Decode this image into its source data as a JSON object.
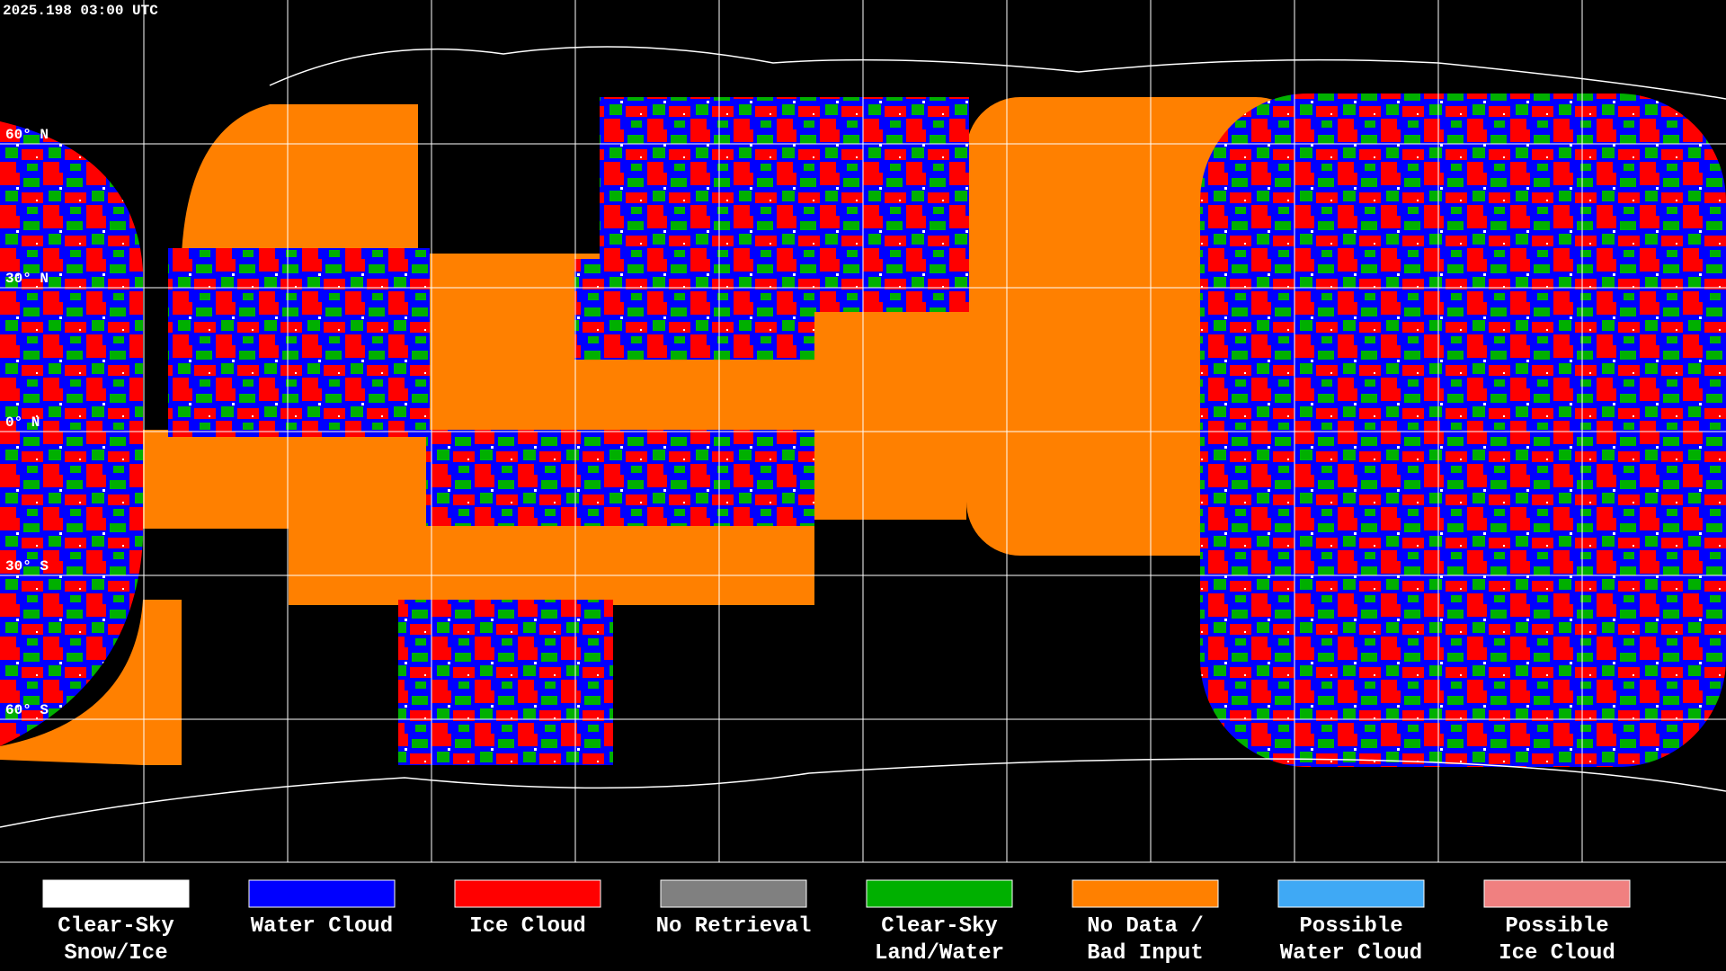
{
  "header": {
    "timestamp": "2025.198 03:00 UTC"
  },
  "map": {
    "latitude_labels": [
      "60° N",
      "30° N",
      "0° N",
      "30° S",
      "60° S"
    ]
  },
  "legend": {
    "items": [
      {
        "lines": [
          "Clear-Sky",
          "Snow/Ice"
        ],
        "color": "#ffffff"
      },
      {
        "lines": [
          "Water Cloud"
        ],
        "color": "#0000ff"
      },
      {
        "lines": [
          "Ice Cloud"
        ],
        "color": "#ff0000"
      },
      {
        "lines": [
          "No Retrieval"
        ],
        "color": "#808080"
      },
      {
        "lines": [
          "Clear-Sky",
          "Land/Water"
        ],
        "color": "#00b000"
      },
      {
        "lines": [
          "No Data /",
          "Bad Input"
        ],
        "color": "#ff8000"
      },
      {
        "lines": [
          "Possible",
          "Water Cloud"
        ],
        "color": "#3fa9f5"
      },
      {
        "lines": [
          "Possible",
          "Ice Cloud"
        ],
        "color": "#f08080"
      }
    ]
  }
}
